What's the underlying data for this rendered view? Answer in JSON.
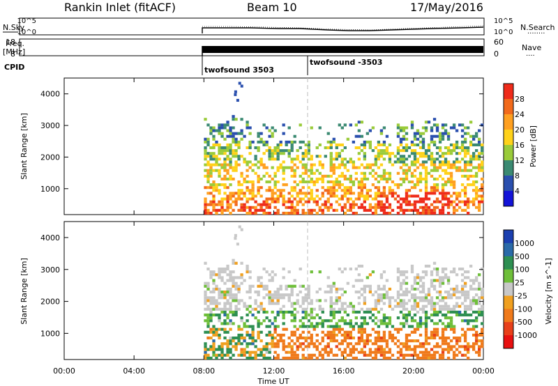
{
  "header": {
    "station": "Rankin Inlet (fitACF)",
    "beam": "Beam 10",
    "date": "17/May/2016"
  },
  "noise_panel": {
    "left_label": "N.Sky",
    "left_ticks": [
      "10^5",
      "10^0"
    ],
    "right_ticks": [
      "10^5",
      "10^0"
    ],
    "right_label": "N.Search",
    "right_legend": "........"
  },
  "freq_panel": {
    "left_label_line1": "Freq.",
    "left_label_line2": "[MHz]",
    "left_ticks": [
      "18",
      "8"
    ],
    "right_ticks": [
      "60",
      "0"
    ],
    "right_label": "Nave",
    "right_legend": "...."
  },
  "cpid": {
    "label": "CPID",
    "programs": [
      {
        "name": "twofsound 3503",
        "start": "08:00"
      },
      {
        "name": "twofsound -3503",
        "start": "14:00"
      }
    ]
  },
  "colors": {
    "power": [
      "#1313d8",
      "#2a4fae",
      "#3b8a72",
      "#9acb3a",
      "#ffd21a",
      "#ffa020",
      "#f26a1b",
      "#ef2b1a"
    ],
    "velocity": [
      "#1b3fb0",
      "#2a6aa8",
      "#2e8f52",
      "#6fbf3a",
      "#c8c8c8",
      "#f0a020",
      "#f07a1b",
      "#e8401a",
      "#e81010"
    ]
  },
  "chart_data": [
    {
      "type": "heatmap",
      "title": "Power",
      "xlabel": "Time UT",
      "ylabel": "Slant Range [km]",
      "x_ticks": [
        "00:00",
        "04:00",
        "08:00",
        "12:00",
        "16:00",
        "20:00",
        "00:00"
      ],
      "y_ticks": [
        1000,
        2000,
        3000,
        4000
      ],
      "xlim_hours": [
        0,
        24
      ],
      "ylim": [
        180,
        4500
      ],
      "colorbar": {
        "label": "Power [dB]",
        "ticks": [
          "4",
          "8",
          "12",
          "16",
          "20",
          "24",
          "28"
        ],
        "range": [
          0,
          32
        ]
      },
      "data_start": "08:00",
      "data_end": "24:00"
    },
    {
      "type": "heatmap",
      "title": "Velocity",
      "xlabel": "Time UT",
      "ylabel": "Slant Range [km]",
      "x_ticks": [
        "00:00",
        "04:00",
        "08:00",
        "12:00",
        "16:00",
        "20:00",
        "00:00"
      ],
      "y_ticks": [
        1000,
        2000,
        3000,
        4000
      ],
      "xlim_hours": [
        0,
        24
      ],
      "ylim": [
        180,
        4500
      ],
      "colorbar": {
        "label": "Velocity [m s^-1]",
        "ticks": [
          "1000",
          "500",
          "100",
          "25",
          "-25",
          "-100",
          "-500",
          "-1000"
        ]
      },
      "data_start": "08:00",
      "data_end": "24:00"
    }
  ]
}
